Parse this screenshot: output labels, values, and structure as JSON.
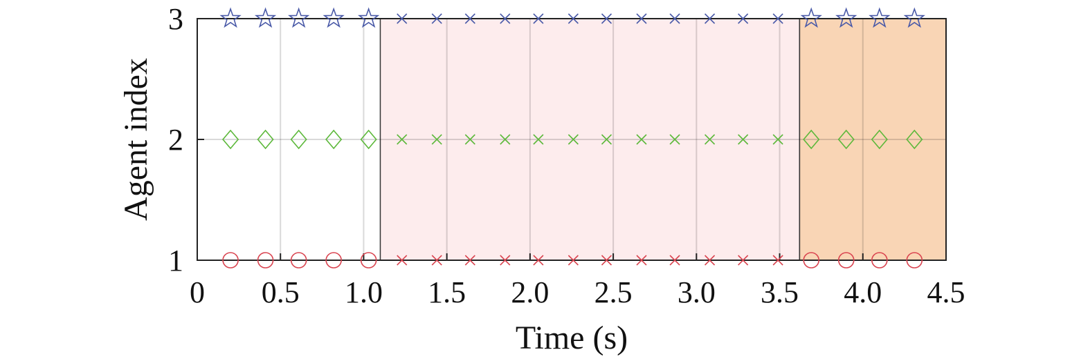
{
  "chart_data": {
    "type": "scatter",
    "title": "",
    "xlabel": "Time (s)",
    "ylabel": "Agent index",
    "xlim": [
      0,
      4.5
    ],
    "ylim": [
      1,
      3
    ],
    "x_ticks": [
      "0",
      "0.5",
      "1.0",
      "1.5",
      "2.0",
      "2.5",
      "3.0",
      "3.5",
      "4.0",
      "4.5"
    ],
    "x_tick_values": [
      0,
      0.5,
      1.0,
      1.5,
      2.0,
      2.5,
      3.0,
      3.5,
      4.0,
      4.5
    ],
    "y_ticks": [
      "1",
      "2",
      "3"
    ],
    "y_tick_values": [
      1,
      2,
      3
    ],
    "grid": true,
    "shaded_regions": [
      {
        "x_start": 1.1,
        "x_end": 3.62,
        "color": "#fdeced",
        "border_color": "#333333"
      },
      {
        "x_start": 3.62,
        "x_end": 4.5,
        "color": "#f9d5b5",
        "border_color": "#333333"
      }
    ],
    "series": [
      {
        "agent": 1,
        "color": "#d9434f",
        "points": [
          {
            "x": 0.2,
            "marker": "circle"
          },
          {
            "x": 0.41,
            "marker": "circle"
          },
          {
            "x": 0.61,
            "marker": "circle"
          },
          {
            "x": 0.82,
            "marker": "circle"
          },
          {
            "x": 1.03,
            "marker": "circle"
          },
          {
            "x": 1.23,
            "marker": "x"
          },
          {
            "x": 1.44,
            "marker": "x"
          },
          {
            "x": 1.64,
            "marker": "x"
          },
          {
            "x": 1.85,
            "marker": "x"
          },
          {
            "x": 2.05,
            "marker": "x"
          },
          {
            "x": 2.26,
            "marker": "x"
          },
          {
            "x": 2.46,
            "marker": "x"
          },
          {
            "x": 2.67,
            "marker": "x"
          },
          {
            "x": 2.87,
            "marker": "x"
          },
          {
            "x": 3.08,
            "marker": "x"
          },
          {
            "x": 3.28,
            "marker": "x"
          },
          {
            "x": 3.49,
            "marker": "x"
          },
          {
            "x": 3.69,
            "marker": "circle"
          },
          {
            "x": 3.9,
            "marker": "circle"
          },
          {
            "x": 4.1,
            "marker": "circle"
          },
          {
            "x": 4.31,
            "marker": "circle"
          }
        ]
      },
      {
        "agent": 2,
        "color": "#5cb83a",
        "points": [
          {
            "x": 0.2,
            "marker": "diamond"
          },
          {
            "x": 0.41,
            "marker": "diamond"
          },
          {
            "x": 0.61,
            "marker": "diamond"
          },
          {
            "x": 0.82,
            "marker": "diamond"
          },
          {
            "x": 1.03,
            "marker": "diamond"
          },
          {
            "x": 1.23,
            "marker": "x"
          },
          {
            "x": 1.44,
            "marker": "x"
          },
          {
            "x": 1.64,
            "marker": "x"
          },
          {
            "x": 1.85,
            "marker": "x"
          },
          {
            "x": 2.05,
            "marker": "x"
          },
          {
            "x": 2.26,
            "marker": "x"
          },
          {
            "x": 2.46,
            "marker": "x"
          },
          {
            "x": 2.67,
            "marker": "x"
          },
          {
            "x": 2.87,
            "marker": "x"
          },
          {
            "x": 3.08,
            "marker": "x"
          },
          {
            "x": 3.28,
            "marker": "x"
          },
          {
            "x": 3.49,
            "marker": "x"
          },
          {
            "x": 3.69,
            "marker": "diamond"
          },
          {
            "x": 3.9,
            "marker": "diamond"
          },
          {
            "x": 4.1,
            "marker": "diamond"
          },
          {
            "x": 4.31,
            "marker": "diamond"
          }
        ]
      },
      {
        "agent": 3,
        "color": "#4a5aa8",
        "points": [
          {
            "x": 0.2,
            "marker": "star"
          },
          {
            "x": 0.41,
            "marker": "star"
          },
          {
            "x": 0.61,
            "marker": "star"
          },
          {
            "x": 0.82,
            "marker": "star"
          },
          {
            "x": 1.03,
            "marker": "star"
          },
          {
            "x": 1.23,
            "marker": "x"
          },
          {
            "x": 1.44,
            "marker": "x"
          },
          {
            "x": 1.64,
            "marker": "x"
          },
          {
            "x": 1.85,
            "marker": "x"
          },
          {
            "x": 2.05,
            "marker": "x"
          },
          {
            "x": 2.26,
            "marker": "x"
          },
          {
            "x": 2.46,
            "marker": "x"
          },
          {
            "x": 2.67,
            "marker": "x"
          },
          {
            "x": 2.87,
            "marker": "x"
          },
          {
            "x": 3.08,
            "marker": "x"
          },
          {
            "x": 3.28,
            "marker": "x"
          },
          {
            "x": 3.49,
            "marker": "x"
          },
          {
            "x": 3.69,
            "marker": "star"
          },
          {
            "x": 3.9,
            "marker": "star"
          },
          {
            "x": 4.1,
            "marker": "star"
          },
          {
            "x": 4.31,
            "marker": "star"
          }
        ]
      }
    ]
  }
}
